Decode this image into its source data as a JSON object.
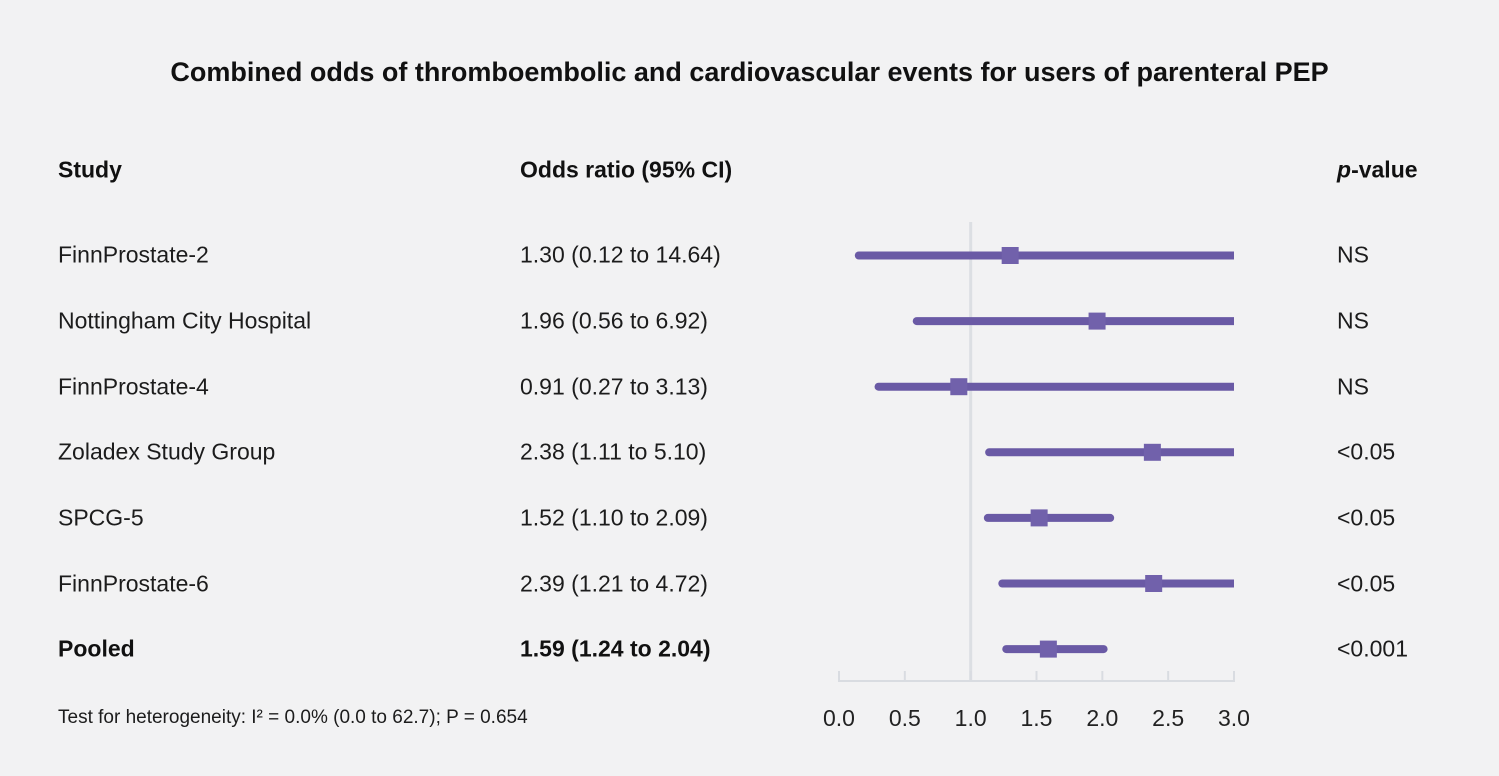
{
  "title": "Combined odds of thromboembolic and cardiovascular events for users of parenteral PEP",
  "columns": {
    "study": "Study",
    "odds_ratio": "Odds ratio (95% CI)",
    "p_italic": "p",
    "p_rest": "-value"
  },
  "rows": [
    {
      "study": "FinnProstate-2",
      "or_text": "1.30 (0.12 to 14.64)",
      "p": "NS",
      "bold": false
    },
    {
      "study": "Nottingham City Hospital",
      "or_text": "1.96 (0.56 to 6.92)",
      "p": "NS",
      "bold": false
    },
    {
      "study": "FinnProstate-4",
      "or_text": "0.91 (0.27 to 3.13)",
      "p": "NS",
      "bold": false
    },
    {
      "study": "Zoladex Study Group",
      "or_text": "2.38 (1.11 to 5.10)",
      "p": "<0.05",
      "bold": false
    },
    {
      "study": "SPCG-5",
      "or_text": "1.52 (1.10 to 2.09)",
      "p": "<0.05",
      "bold": false
    },
    {
      "study": "FinnProstate-6",
      "or_text": "2.39 (1.21 to 4.72)",
      "p": "<0.05",
      "bold": false
    },
    {
      "study": "Pooled",
      "or_text": "1.59 (1.24 to 2.04)",
      "p": "<0.001",
      "bold": true
    }
  ],
  "footnote": "Test for heterogeneity: I² = 0.0% (0.0 to 62.7); P = 0.654",
  "chart_data": {
    "type": "forest",
    "title": "Combined odds of thromboembolic and cardiovascular events for users of parenteral PEP",
    "xlim": [
      0.0,
      3.0
    ],
    "tick_values": [
      0.0,
      0.5,
      1.0,
      1.5,
      2.0,
      2.5,
      3.0
    ],
    "tick_labels": [
      "0.0",
      "0.5",
      "1.0",
      "1.5",
      "2.0",
      "2.5",
      "3.0"
    ],
    "reference_line": 1.0,
    "points": [
      {
        "study": "FinnProstate-2",
        "or": 1.3,
        "ci_low": 0.12,
        "ci_high": 14.64,
        "p": "NS"
      },
      {
        "study": "Nottingham City Hospital",
        "or": 1.96,
        "ci_low": 0.56,
        "ci_high": 6.92,
        "p": "NS"
      },
      {
        "study": "FinnProstate-4",
        "or": 0.91,
        "ci_low": 0.27,
        "ci_high": 3.13,
        "p": "NS"
      },
      {
        "study": "Zoladex Study Group",
        "or": 2.38,
        "ci_low": 1.11,
        "ci_high": 5.1,
        "p": "<0.05"
      },
      {
        "study": "SPCG-5",
        "or": 1.52,
        "ci_low": 1.1,
        "ci_high": 2.09,
        "p": "<0.05"
      },
      {
        "study": "FinnProstate-6",
        "or": 2.39,
        "ci_low": 1.21,
        "ci_high": 4.72,
        "p": "<0.05"
      },
      {
        "study": "Pooled",
        "or": 1.59,
        "ci_low": 1.24,
        "ci_high": 2.04,
        "p": "<0.001"
      }
    ]
  },
  "colors": {
    "background": "#f2f2f3",
    "bar": "#6a5aa5",
    "marker": "#7161ab",
    "reference_line": "#dcdfe3",
    "axis": "#d9dce1",
    "text": "#1c1c1c"
  }
}
